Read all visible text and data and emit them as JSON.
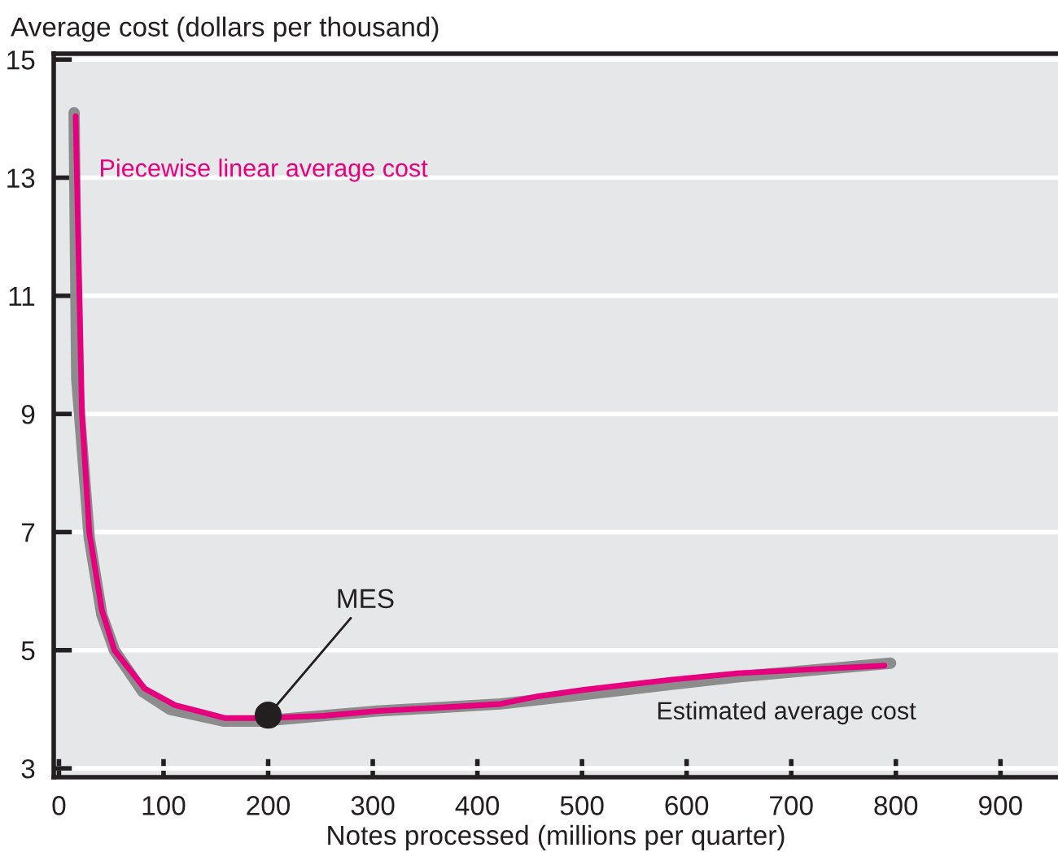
{
  "chart_data": {
    "type": "line",
    "xlabel": "Notes processed (millions per quarter)",
    "ylabel": "Average cost (dollars per thousand)",
    "series": [
      {
        "name": "Estimated average cost",
        "color": "#8c8c8c",
        "x": [
          14.5,
          17,
          29,
          41,
          53,
          80,
          106,
          157,
          193,
          304,
          355,
          422,
          502,
          585,
          649,
          795
        ],
        "values": [
          14.1,
          9.6,
          6.9,
          5.6,
          5.0,
          4.3,
          4.0,
          3.8,
          3.8,
          3.97,
          4.02,
          4.09,
          4.25,
          4.42,
          4.55,
          4.78
        ]
      },
      {
        "name": "Piecewise linear average cost",
        "color": "#e6007e",
        "x": [
          16,
          22,
          29,
          41,
          53,
          82,
          111,
          159,
          193,
          253,
          304,
          355,
          422,
          458,
          502,
          585,
          649,
          789
        ],
        "values": [
          14.04,
          9.0,
          7.0,
          5.68,
          5.0,
          4.35,
          4.07,
          3.85,
          3.85,
          3.89,
          3.97,
          4.02,
          4.09,
          4.22,
          4.33,
          4.5,
          4.61,
          4.74
        ]
      },
      {
        "type": "scatter",
        "color": "#231f20",
        "x": [
          200
        ],
        "values": [
          3.9
        ]
      }
    ],
    "annotations": [
      {
        "text": "MES",
        "x": 200,
        "y": 3.9
      }
    ],
    "xlim": [
      -5,
      955
    ],
    "xticks": [
      0,
      100,
      200,
      300,
      400,
      500,
      600,
      700,
      800,
      900
    ],
    "ylim": [
      2.85,
      15.1
    ],
    "yticks": [
      3,
      5,
      7,
      9,
      11,
      13,
      15
    ],
    "grid": "y",
    "legend": false
  }
}
